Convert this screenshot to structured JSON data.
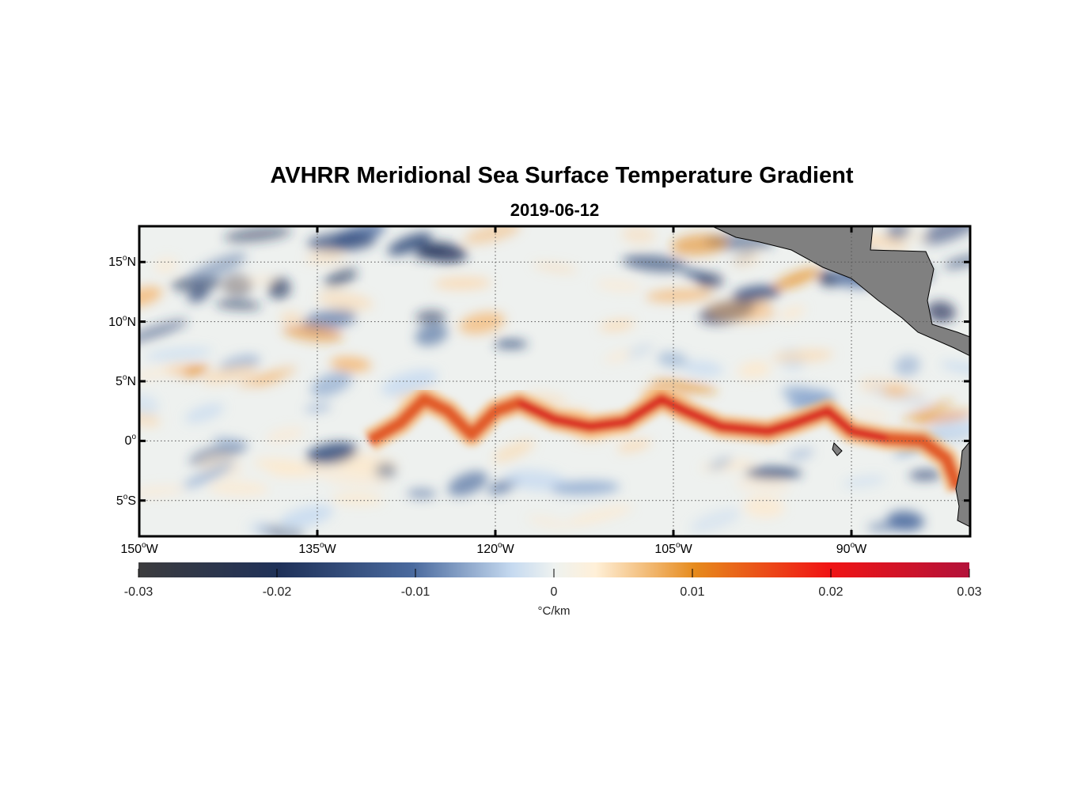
{
  "title": "AVHRR Meridional Sea Surface Temperature Gradient",
  "subtitle": "2019-06-12",
  "map": {
    "lon_range_deg": [
      -150,
      -80
    ],
    "lat_range_deg": [
      -8,
      18
    ],
    "grid": "dotted",
    "land_color": "#808080",
    "lat_labels": [
      {
        "value": "15",
        "hemi": "N"
      },
      {
        "value": "10",
        "hemi": "N"
      },
      {
        "value": "5",
        "hemi": "N"
      },
      {
        "value": "0",
        "hemi": ""
      },
      {
        "value": "5",
        "hemi": "S"
      }
    ],
    "lon_labels": [
      {
        "value": "150",
        "hemi": "W"
      },
      {
        "value": "135",
        "hemi": "W"
      },
      {
        "value": "120",
        "hemi": "W"
      },
      {
        "value": "105",
        "hemi": "W"
      },
      {
        "value": "90",
        "hemi": "W"
      }
    ],
    "deg_symbol": "o"
  },
  "colorbar": {
    "min": -0.03,
    "max": 0.03,
    "ticks": [
      "-0.03",
      "-0.02",
      "-0.01",
      "0",
      "0.01",
      "0.02",
      "0.03"
    ],
    "unit": "°C/km",
    "colors": [
      "#3c3c3e",
      "#1f3159",
      "#4a6a9e",
      "#c6daf0",
      "#fff4e3",
      "#e68a1c",
      "#f01414",
      "#b3123a"
    ]
  }
}
